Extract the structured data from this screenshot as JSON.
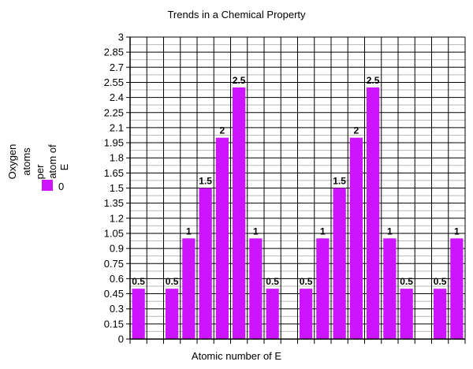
{
  "chart_data": {
    "type": "bar",
    "title": "Trends in a Chemical Property",
    "xlabel": "Atomic number of E",
    "ylabel": "",
    "ylim": [
      0,
      3
    ],
    "y_ticks": [
      "0",
      "0.15",
      "0.3",
      "0.45",
      "0.6",
      "0.75",
      "0.9",
      "1.05",
      "1.2",
      "1.35",
      "1.5",
      "1.65",
      "1.8",
      "1.95",
      "2.1",
      "2.25",
      "2.4",
      "2.55",
      "2.7",
      "2.85",
      "3"
    ],
    "grid": true,
    "legend_position": "left",
    "series": [
      {
        "name": "Oxygen atoms per atom of E",
        "legend_label": "0",
        "color": "#cc14ff",
        "values": [
          0.5,
          null,
          0.5,
          1,
          1.5,
          2,
          2.5,
          1,
          0.5,
          null,
          0.5,
          1,
          1.5,
          2,
          2.5,
          1,
          0.5,
          null,
          0.5,
          1
        ],
        "data_labels": [
          "0.5",
          "",
          "0.5",
          "1",
          "1.5",
          "2",
          "2.5",
          "1",
          "0.5",
          "",
          "0.5",
          "1",
          "1.5",
          "2",
          "2.5",
          "1",
          "0.5",
          "",
          "0.5",
          "1"
        ]
      }
    ],
    "legend_title_lines": [
      "Oxygen",
      "atoms",
      "per",
      "atom of",
      "E"
    ]
  }
}
